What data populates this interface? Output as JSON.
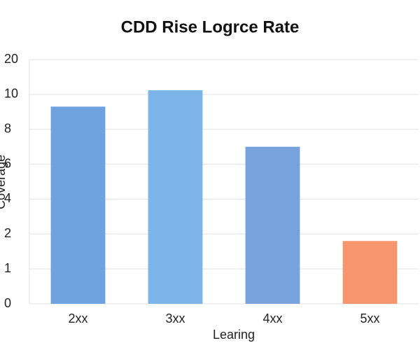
{
  "chart_data": {
    "type": "bar",
    "title": "CDD Rise Logrce Rate",
    "x_label": "Learing",
    "y_label": "Coverage",
    "categories": [
      "2xx",
      "3xx",
      "4xx",
      "5xx"
    ],
    "values": [
      9.3,
      11.2,
      7.0,
      1.8
    ],
    "colors": [
      "#6fa3e0",
      "#7db5ea",
      "#78a2dc",
      "#f7956f"
    ],
    "ylim": [
      0,
      20
    ],
    "yticks": [
      0,
      1,
      2,
      4,
      6,
      8,
      10,
      20
    ],
    "grid": true
  }
}
